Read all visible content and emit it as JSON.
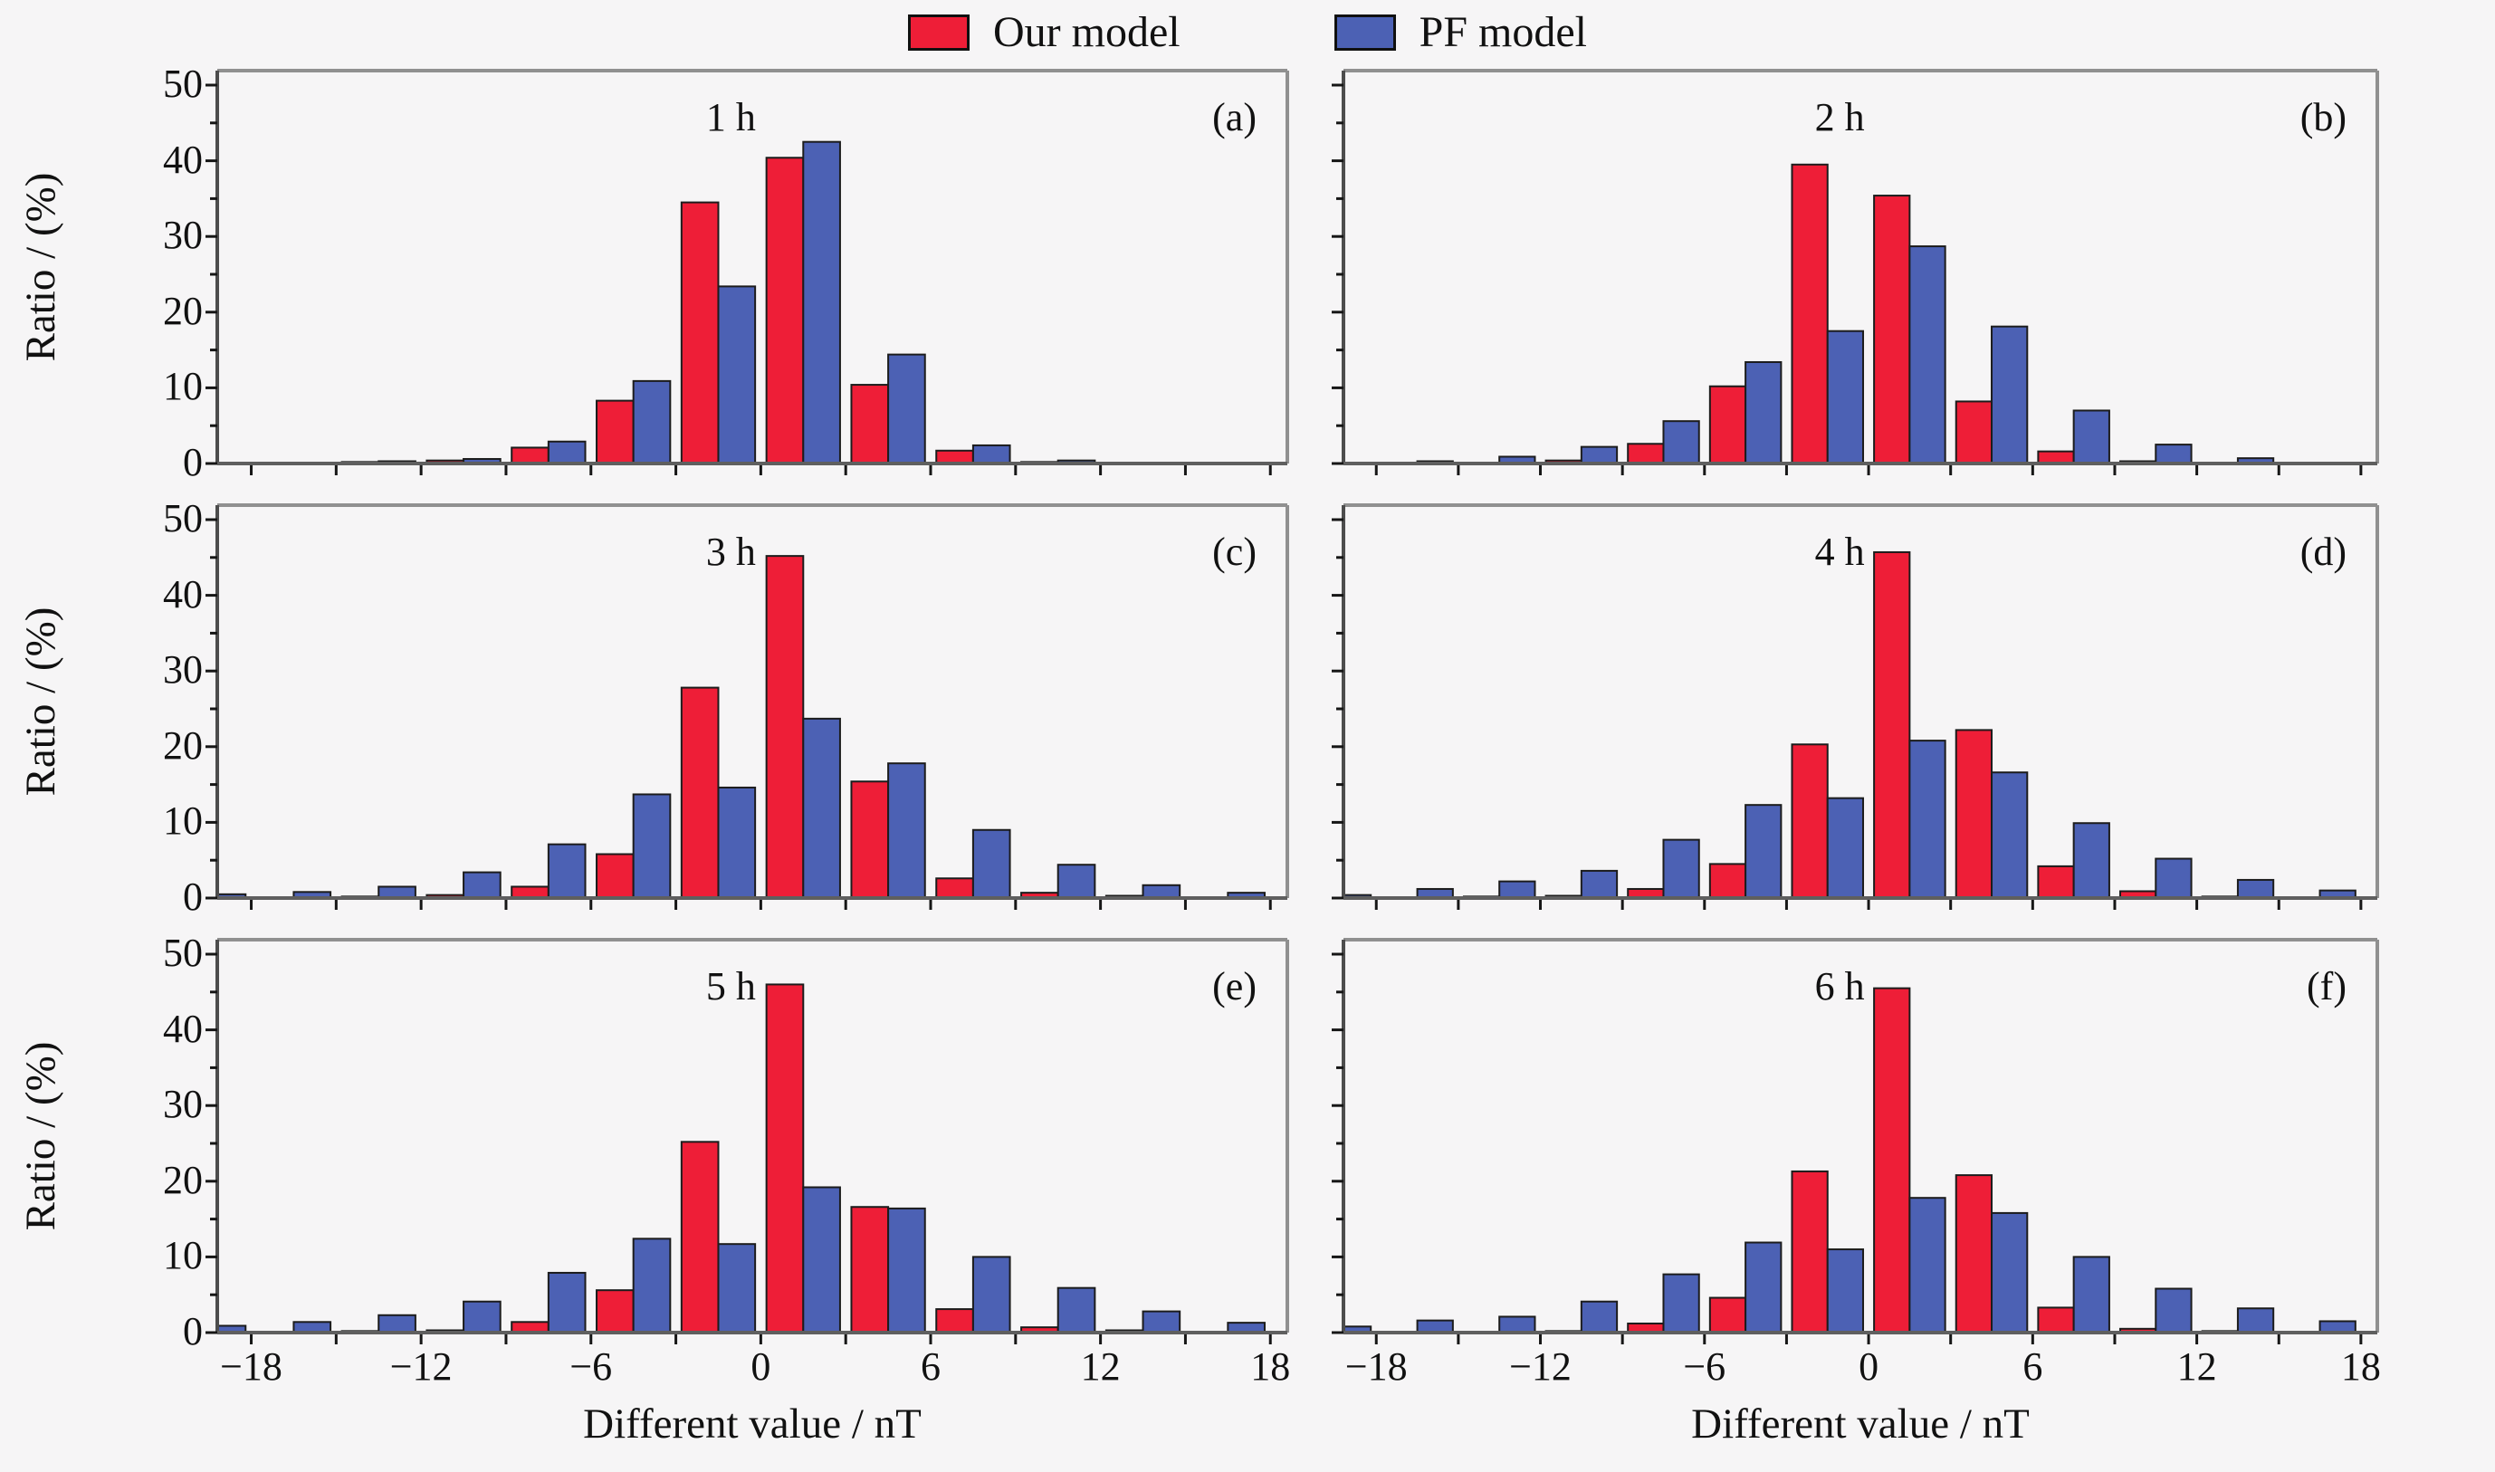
{
  "legend": {
    "items": [
      {
        "label": "Our model",
        "swatch": "red-swatch"
      },
      {
        "label": "PF model",
        "swatch": "blue-swatch"
      }
    ]
  },
  "colors": {
    "our_model": "#ee1e37",
    "pf_model": "#4c61b4",
    "bar_outline": "#1c1c1c",
    "spine_light": "#909090",
    "spine_dark": "#4d4d4d",
    "background": "#f6f5f6",
    "text": "#111111"
  },
  "chart_data": {
    "type": "bar",
    "title": "",
    "x_axis": {
      "title": "Different value / nT",
      "tick_labels": [
        "−18",
        "−12",
        "−6",
        "0",
        "6",
        "12",
        "18"
      ],
      "tick_values": [
        -18,
        -12,
        -6,
        0,
        6,
        12,
        18
      ],
      "minor_tick_step": 3,
      "range": [
        -19.2,
        18.6
      ]
    },
    "y_axis": {
      "title": "Ratio / (%)",
      "tick_labels": [
        "0",
        "10",
        "20",
        "30",
        "40",
        "50"
      ],
      "tick_values": [
        0,
        10,
        20,
        30,
        40,
        50
      ],
      "minor_tick_step": 5,
      "range": [
        0,
        50
      ]
    },
    "bin_width": 3,
    "bin_starts": [
      -21,
      -18,
      -15,
      -12,
      -9,
      -6,
      -3,
      0,
      3,
      6,
      9,
      12,
      15
    ],
    "series_names": [
      "Our model",
      "PF model"
    ],
    "panels": [
      {
        "tag": "(a)",
        "title": "1 h",
        "our_model": [
          0,
          0.1,
          0.2,
          0.4,
          2.1,
          8.3,
          34.5,
          40.4,
          10.4,
          1.7,
          0.2,
          0.1,
          0
        ],
        "pf_model": [
          0,
          0.1,
          0.3,
          0.6,
          2.9,
          10.9,
          23.4,
          42.5,
          14.4,
          2.4,
          0.4,
          0.1,
          0
        ]
      },
      {
        "tag": "(b)",
        "title": "2 h",
        "our_model": [
          0,
          0.1,
          0.1,
          0.4,
          2.6,
          10.2,
          39.5,
          35.4,
          8.2,
          1.6,
          0.3,
          0.1,
          0
        ],
        "pf_model": [
          0,
          0.3,
          0.9,
          2.2,
          5.6,
          13.4,
          17.5,
          28.7,
          18.1,
          7.0,
          2.5,
          0.7,
          0.1
        ]
      },
      {
        "tag": "(c)",
        "title": "3 h",
        "our_model": [
          0,
          0.1,
          0.2,
          0.4,
          1.5,
          5.8,
          27.8,
          45.2,
          15.4,
          2.6,
          0.7,
          0.3,
          0
        ],
        "pf_model": [
          0.5,
          0.8,
          1.5,
          3.4,
          7.1,
          13.7,
          14.6,
          23.7,
          17.8,
          9.0,
          4.4,
          1.7,
          0.7
        ]
      },
      {
        "tag": "(d)",
        "title": "4 h",
        "our_model": [
          0,
          0.1,
          0.2,
          0.3,
          1.2,
          4.5,
          20.3,
          45.7,
          22.2,
          4.2,
          0.9,
          0.2,
          0
        ],
        "pf_model": [
          0.4,
          1.2,
          2.2,
          3.6,
          7.7,
          12.3,
          13.2,
          20.8,
          16.6,
          9.9,
          5.2,
          2.4,
          1.0
        ]
      },
      {
        "tag": "(e)",
        "title": "5 h",
        "our_model": [
          0,
          0,
          0.2,
          0.3,
          1.4,
          5.6,
          25.2,
          46.0,
          16.6,
          3.1,
          0.7,
          0.3,
          0
        ],
        "pf_model": [
          0.9,
          1.4,
          2.3,
          4.1,
          7.9,
          12.4,
          11.7,
          19.2,
          16.4,
          10.0,
          5.9,
          2.8,
          1.3
        ]
      },
      {
        "tag": "(f)",
        "title": "6 h",
        "our_model": [
          0,
          0,
          0.1,
          0.2,
          1.2,
          4.6,
          21.3,
          45.5,
          20.8,
          3.3,
          0.5,
          0.2,
          0
        ],
        "pf_model": [
          0.8,
          1.6,
          2.1,
          4.1,
          7.7,
          11.9,
          11.0,
          17.8,
          15.8,
          10.0,
          5.8,
          3.2,
          1.5
        ]
      }
    ]
  }
}
